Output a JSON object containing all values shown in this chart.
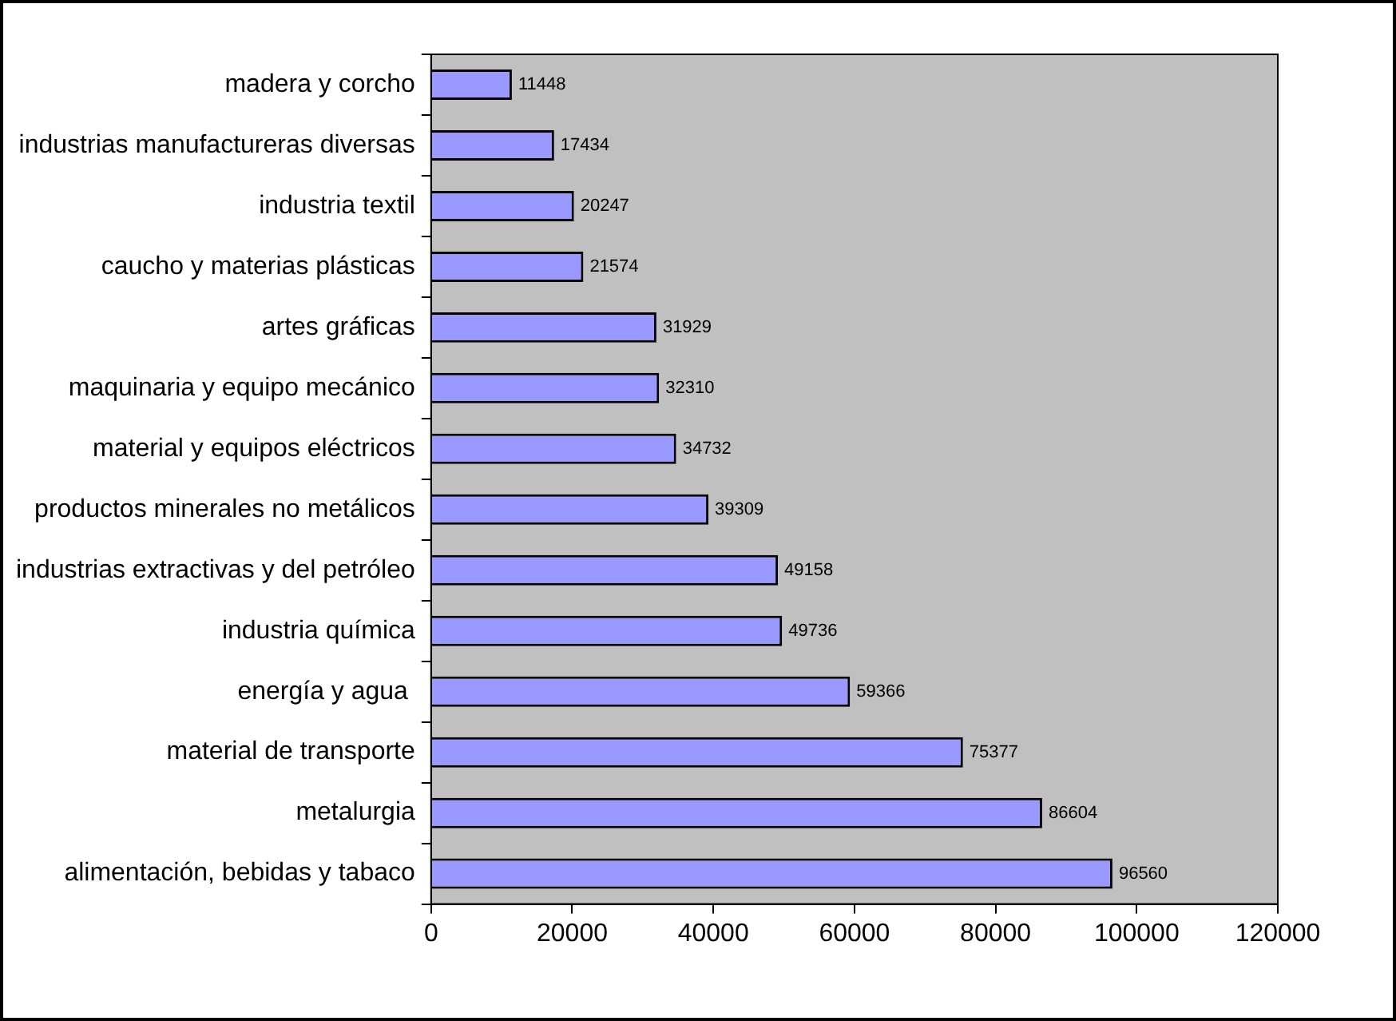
{
  "chart_data": {
    "type": "bar",
    "orientation": "horizontal",
    "categories": [
      "madera y corcho",
      "industrias manufactureras diversas",
      "industria textil",
      "caucho y materias plásticas",
      "artes gráficas",
      "maquinaria y equipo mecánico",
      "material y equipos eléctricos",
      "productos minerales no metálicos",
      "industrias extractivas y del petróleo",
      "industria química",
      "energía y agua ",
      "material de transporte",
      "metalurgia",
      "alimentación, bebidas y tabaco"
    ],
    "values": [
      11448,
      17434,
      20247,
      21574,
      31929,
      32310,
      34732,
      39309,
      49158,
      49736,
      59366,
      75377,
      86604,
      96560
    ],
    "color": "#9999ff",
    "xlim": [
      0,
      120000
    ],
    "xticks": [
      0,
      20000,
      40000,
      60000,
      80000,
      100000,
      120000
    ],
    "data_labels": true,
    "grid": false,
    "legend": false
  }
}
